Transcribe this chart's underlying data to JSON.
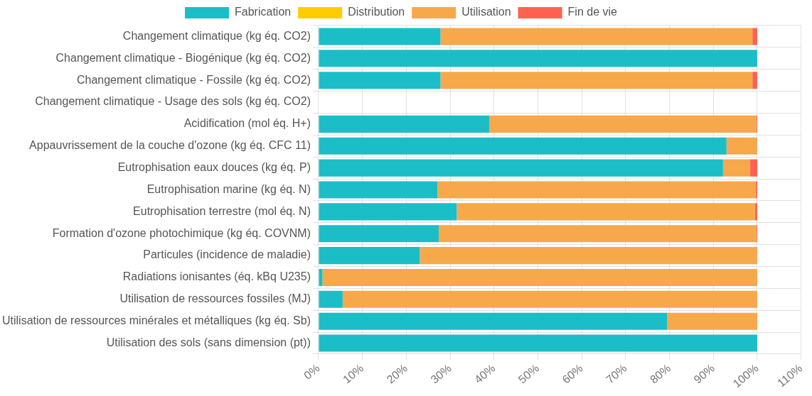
{
  "chart_data": {
    "type": "bar",
    "orientation": "horizontal",
    "stacked": true,
    "categories": [
      "Changement climatique (kg éq. CO2)",
      "Changement climatique - Biogénique (kg éq. CO2)",
      "Changement climatique - Fossile (kg éq. CO2)",
      "Changement climatique - Usage des sols (kg éq. CO2)",
      "Acidification (mol éq. H+)",
      "Appauvrissement de la couche d'ozone (kg éq. CFC 11)",
      "Eutrophisation eaux douces (kg éq. P)",
      "Eutrophisation marine (kg éq. N)",
      "Eutrophisation terrestre (mol éq. N)",
      "Formation d'ozone photochimique (kg éq. COVNM)",
      "Particules (incidence de maladie)",
      "Radiations ionisantes (éq. kBq U235)",
      "Utilisation de ressources fossiles (MJ)",
      "Utilisation de ressources minérales et métalliques (kg éq. Sb)",
      "Utilisation des sols (sans dimension (pt))"
    ],
    "series": [
      {
        "name": "Fabrication",
        "color": "#1bbec7",
        "values": [
          27.8,
          100,
          27.8,
          null,
          38.9,
          93.0,
          92.2,
          27.1,
          31.5,
          27.4,
          23.1,
          0.9,
          5.5,
          79.5,
          100
        ]
      },
      {
        "name": "Distribution",
        "color": "#ffcc00",
        "values": [
          0,
          0,
          0,
          null,
          0,
          0,
          0,
          0,
          0,
          0,
          0,
          0,
          0,
          0,
          0
        ]
      },
      {
        "name": "Utilisation",
        "color": "#f7a84a",
        "values": [
          71.1,
          0,
          71.1,
          null,
          60.9,
          7.0,
          6.2,
          72.6,
          68.0,
          72.4,
          76.9,
          99.1,
          94.5,
          20.5,
          0
        ]
      },
      {
        "name": "Fin de vie",
        "color": "#ff6150",
        "values": [
          1.1,
          0,
          1.1,
          null,
          0.2,
          0,
          1.6,
          0.3,
          0.5,
          0.2,
          0,
          0,
          0,
          0,
          0
        ]
      }
    ],
    "xlim": [
      0,
      110
    ],
    "xticks": [
      {
        "value": 0,
        "label": "0%"
      },
      {
        "value": 10,
        "label": "10%"
      },
      {
        "value": 20,
        "label": "20%"
      },
      {
        "value": 30,
        "label": "30%"
      },
      {
        "value": 40,
        "label": "40%"
      },
      {
        "value": 50,
        "label": "50%"
      },
      {
        "value": 60,
        "label": "60%"
      },
      {
        "value": 70,
        "label": "70%"
      },
      {
        "value": 80,
        "label": "80%"
      },
      {
        "value": 90,
        "label": "90%"
      },
      {
        "value": 100,
        "label": "100%"
      },
      {
        "value": 110,
        "label": "110%"
      }
    ],
    "grid": true,
    "legend": "top"
  }
}
